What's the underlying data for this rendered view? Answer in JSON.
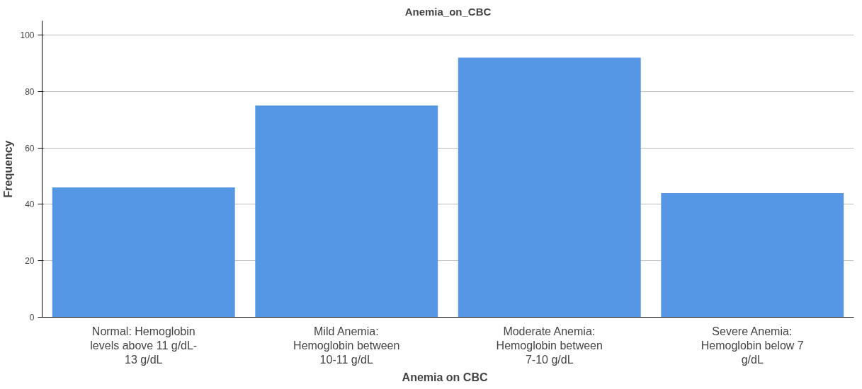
{
  "chart_data": {
    "type": "bar",
    "title": "Anemia_on_CBC",
    "xlabel": "Anemia  on  CBC",
    "ylabel": "Frequency",
    "categories": [
      "Normal: Hemoglobin\nlevels above 11 g/dL-\n13 g/dL",
      "Mild Anemia:\nHemoglobin between\n10-11 g/dL",
      "Moderate Anemia:\nHemoglobin between\n7-10 g/dL",
      "Severe Anemia:\nHemoglobin below 7\ng/dL"
    ],
    "values": [
      46,
      75,
      92,
      44
    ],
    "color": "#5596e5",
    "ylim": [
      0,
      105
    ],
    "yticks": [
      0,
      20,
      40,
      60,
      80,
      100
    ],
    "grid": "y"
  }
}
